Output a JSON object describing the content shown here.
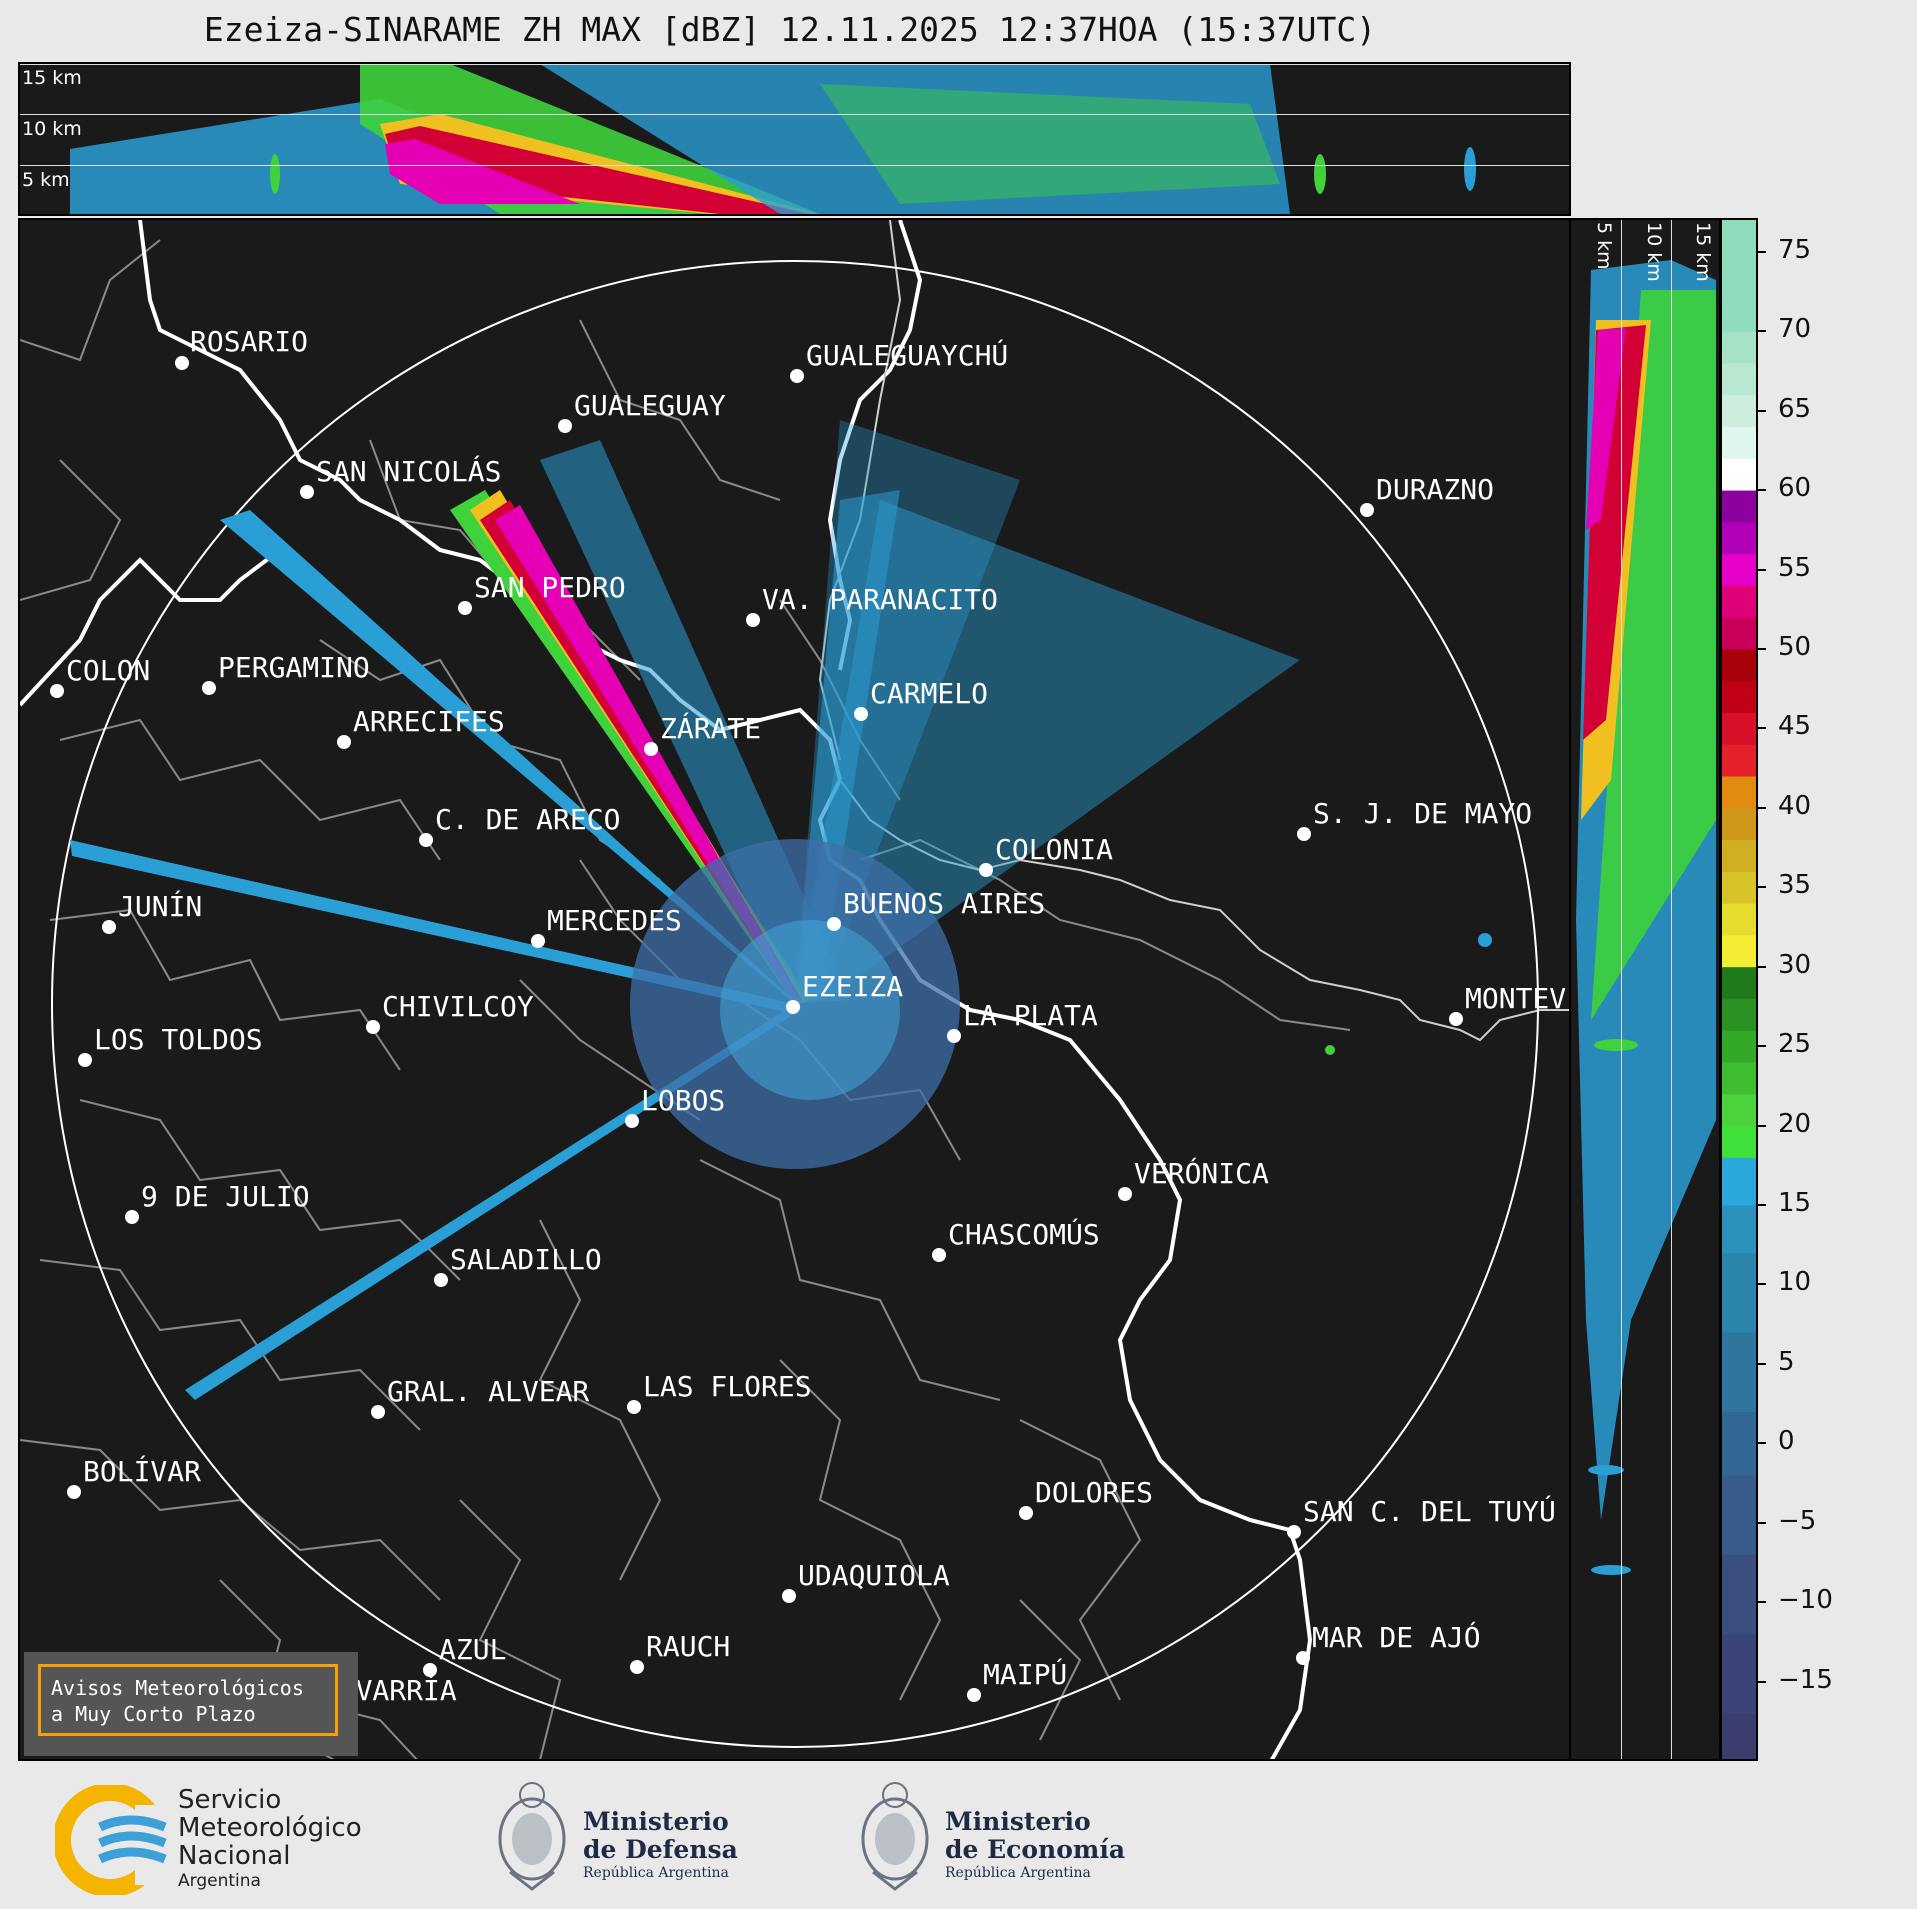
{
  "title": "Ezeiza-SINARAME ZH MAX [dBZ] 12.11.2025 12:37HOA (15:37UTC)",
  "top_panel": {
    "height_labels": [
      "15 km",
      "10 km",
      "5 km"
    ]
  },
  "side_panel": {
    "height_labels": [
      "5 km",
      "10 km",
      "15 km"
    ]
  },
  "colorbar": {
    "unit": "dBZ",
    "ticks": [
      "75",
      "70",
      "65",
      "60",
      "55",
      "50",
      "45",
      "40",
      "35",
      "30",
      "25",
      "20",
      "15",
      "10",
      "5",
      "0",
      "−5",
      "−10",
      "−15"
    ],
    "tick_values": [
      75,
      70,
      65,
      60,
      55,
      50,
      45,
      40,
      35,
      30,
      25,
      20,
      15,
      10,
      5,
      0,
      -5,
      -10,
      -15
    ],
    "range": [
      -20,
      77
    ]
  },
  "radar": {
    "site": "EZEIZA"
  },
  "cities": [
    {
      "name": "ROSARIO"
    },
    {
      "name": "GUALEGUAYCHÚ"
    },
    {
      "name": "GUALEGUAY"
    },
    {
      "name": "SAN NICOLÁS"
    },
    {
      "name": "DURAZNO"
    },
    {
      "name": "SAN PEDRO"
    },
    {
      "name": "VA. PARANACITO"
    },
    {
      "name": "COLON"
    },
    {
      "name": "PERGAMINO"
    },
    {
      "name": "CARMELO"
    },
    {
      "name": "ARRECIFES"
    },
    {
      "name": "ZÁRATE"
    },
    {
      "name": "S. J. DE MAYO"
    },
    {
      "name": "C. DE ARECO"
    },
    {
      "name": "COLONIA"
    },
    {
      "name": "JUNÍN"
    },
    {
      "name": "BUENOS AIRES"
    },
    {
      "name": "MERCEDES"
    },
    {
      "name": "EZEIZA"
    },
    {
      "name": "MONTEV"
    },
    {
      "name": "CHIVILCOY"
    },
    {
      "name": "LA PLATA"
    },
    {
      "name": "LOS TOLDOS"
    },
    {
      "name": "LOBOS"
    },
    {
      "name": "VERÓNICA"
    },
    {
      "name": "9 DE JULIO"
    },
    {
      "name": "CHASCOMÚS"
    },
    {
      "name": "SALADILLO"
    },
    {
      "name": "GRAL. ALVEAR"
    },
    {
      "name": "LAS FLORES"
    },
    {
      "name": "BOLÍVAR"
    },
    {
      "name": "DOLORES"
    },
    {
      "name": "SAN C. DEL TUYÚ"
    },
    {
      "name": "UDAQUIOLA"
    },
    {
      "name": "MAR DE AJÓ"
    },
    {
      "name": "AZUL"
    },
    {
      "name": "RAUCH"
    },
    {
      "name": "MAIPÚ"
    },
    {
      "name": "OLAVARRÍA"
    }
  ],
  "notice": {
    "line1": "Avisos Meteorológicos",
    "line2": "a Muy Corto Plazo",
    "border_color": "#f5a10b"
  },
  "logos": {
    "smn": {
      "line1": "Servicio",
      "line2": "Meteorológico",
      "line3": "Nacional",
      "line4": "Argentina"
    },
    "defensa": {
      "line1": "Ministerio",
      "line2": "de Defensa",
      "line3": "República Argentina"
    },
    "economia": {
      "line1": "Ministerio",
      "line2": "de Economía",
      "line3": "República Argentina"
    }
  },
  "colors": {
    "background": "#1a1a1a",
    "coast": "#ffffff",
    "borders": "#8a8a8a",
    "range_ring": "#ffffff",
    "echo_low": "#2a9fd6",
    "echo_mid": "#3fd23a",
    "echo_high": "#d20034",
    "echo_max": "#e600b4"
  }
}
